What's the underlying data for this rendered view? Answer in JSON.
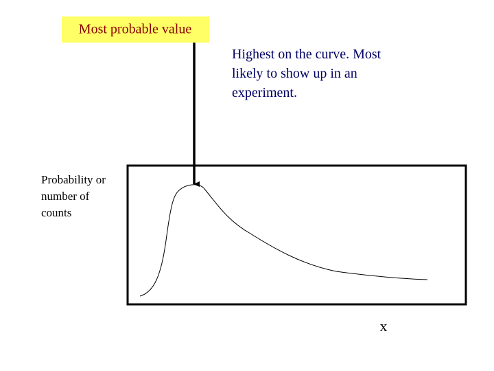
{
  "callout": {
    "label": "Most probable value"
  },
  "description": {
    "lines": [
      "Highest on the curve.  Most",
      "likely to show up in an",
      "experiment."
    ]
  },
  "y_axis": {
    "lines": [
      "Probability or",
      "number of",
      "counts"
    ]
  },
  "x_axis": {
    "label": "x"
  }
}
